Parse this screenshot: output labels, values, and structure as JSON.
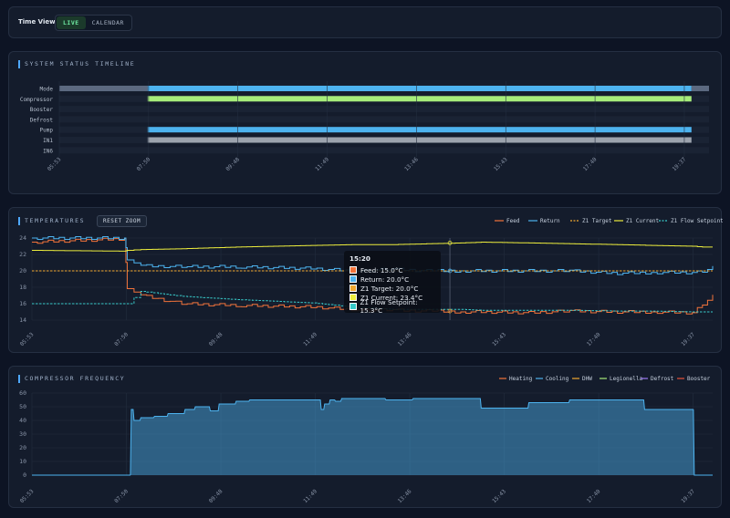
{
  "time_view": {
    "label": "Time View:",
    "live_label": "LIVE",
    "calendar_label": "CALENDAR",
    "selected": "LIVE"
  },
  "time_labels": [
    "05:53",
    "07:50",
    "09:48",
    "11:49",
    "13:46",
    "15:43",
    "17:40",
    "19:37"
  ],
  "status": {
    "title": "SYSTEM STATUS TIMELINE",
    "rows": [
      {
        "label": "Mode",
        "segments": [
          {
            "from": 0,
            "to": 0.136,
            "color": "#5c6980"
          },
          {
            "from": 0.136,
            "to": 0.973,
            "color": "#4db3ef"
          },
          {
            "from": 0.973,
            "to": 1.0,
            "color": "#5c6980"
          }
        ]
      },
      {
        "label": "Compressor",
        "segments": [
          {
            "from": 0.136,
            "to": 0.973,
            "color": "#a6ec7a"
          }
        ]
      },
      {
        "label": "Booster",
        "segments": []
      },
      {
        "label": "Defrost",
        "segments": []
      },
      {
        "label": "Pump",
        "segments": [
          {
            "from": 0.136,
            "to": 0.973,
            "color": "#4db3ef"
          }
        ]
      },
      {
        "label": "IN1",
        "segments": [
          {
            "from": 0.136,
            "to": 0.973,
            "color": "#9ca3ad"
          }
        ]
      },
      {
        "label": "IN6",
        "segments": []
      }
    ]
  },
  "temperatures": {
    "title": "TEMPERATURES",
    "reset_label": "RESET ZOOM",
    "ylim": [
      14,
      24
    ],
    "yticks": [
      14,
      16,
      18,
      20,
      22,
      24
    ],
    "series": [
      {
        "name": "Feed",
        "color": "#f2733a",
        "dash": false
      },
      {
        "name": "Return",
        "color": "#4db3ef",
        "dash": false
      },
      {
        "name": "Z1 Target",
        "color": "#f0a830",
        "dash": true
      },
      {
        "name": "Z1 Current",
        "color": "#ecec3c",
        "dash": false
      },
      {
        "name": "Z1 Flow Setpoint",
        "color": "#38c9c9",
        "dash": true
      }
    ],
    "tooltip": {
      "time": "15:20",
      "rows": [
        {
          "label": "Feed: 15.0°C",
          "color": "#f2733a"
        },
        {
          "label": "Return: 20.0°C",
          "color": "#4db3ef"
        },
        {
          "label": "Z1 Target: 20.0°C",
          "color": "#f0a830"
        },
        {
          "label": "Z1 Current: 23.4°C",
          "color": "#ecec3c"
        },
        {
          "label": "Z1 Flow Setpoint: 15.3°C",
          "color": "#38c9c9"
        }
      ]
    }
  },
  "compressor": {
    "title": "COMPRESSOR FREQUENCY",
    "ylim": [
      0,
      60
    ],
    "yticks": [
      0,
      10,
      20,
      30,
      40,
      50,
      60
    ],
    "legend": [
      {
        "name": "Heating",
        "color": "#f2733a"
      },
      {
        "name": "Cooling",
        "color": "#4db3ef"
      },
      {
        "name": "DHW",
        "color": "#f0a830"
      },
      {
        "name": "Legionella",
        "color": "#a6ec7a"
      },
      {
        "name": "Defrost",
        "color": "#9d7bf5"
      },
      {
        "name": "Booster",
        "color": "#e8523a"
      }
    ]
  },
  "chart_data": [
    {
      "type": "line",
      "title": "TEMPERATURES",
      "x": [
        "05:53",
        "07:50",
        "07:52",
        "08:10",
        "09:00",
        "10:00",
        "11:49",
        "12:30",
        "13:46",
        "14:30",
        "15:20",
        "15:43",
        "16:30",
        "17:40",
        "18:30",
        "19:37",
        "20:30",
        "20:45",
        "20:55"
      ],
      "ylim": [
        14,
        24
      ],
      "series": [
        {
          "name": "Feed",
          "values": [
            23.5,
            23.9,
            18.0,
            17.0,
            16.0,
            15.8,
            15.6,
            15.3,
            15.2,
            15.1,
            15.0,
            15.0,
            14.9,
            15.1,
            15.0,
            15.0,
            14.9,
            16.0,
            17.0
          ]
        },
        {
          "name": "Return",
          "values": [
            24.0,
            24.0,
            21.5,
            20.6,
            20.5,
            20.5,
            20.3,
            20.0,
            20.2,
            20.0,
            20.0,
            20.0,
            20.0,
            20.0,
            19.7,
            19.8,
            19.8,
            20.0,
            20.5
          ]
        },
        {
          "name": "Z1 Target",
          "values": [
            20,
            20,
            20,
            20,
            20,
            20,
            20,
            20,
            20,
            20,
            20,
            20,
            20,
            20,
            20,
            20,
            20,
            20,
            20
          ]
        },
        {
          "name": "Z1 Current",
          "values": [
            22.5,
            22.4,
            22.5,
            22.6,
            22.7,
            22.9,
            23.1,
            23.2,
            23.2,
            23.3,
            23.4,
            23.5,
            23.4,
            23.3,
            23.2,
            23.1,
            23.0,
            22.9,
            22.9
          ]
        },
        {
          "name": "Z1 Flow Setpoint",
          "values": [
            16.0,
            16.0,
            16.0,
            17.5,
            16.9,
            16.5,
            16.1,
            15.6,
            15.3,
            15.3,
            15.3,
            15.2,
            15.2,
            15.2,
            15.1,
            15.1,
            15.0,
            15.0,
            15.0
          ]
        }
      ]
    },
    {
      "type": "area",
      "title": "COMPRESSOR FREQUENCY",
      "ylim": [
        0,
        60
      ],
      "series": [
        {
          "name": "Cooling",
          "points": [
            [
              0.0,
              0
            ],
            [
              0.145,
              0
            ],
            [
              0.146,
              48
            ],
            [
              0.15,
              40
            ],
            [
              0.16,
              42
            ],
            [
              0.18,
              43
            ],
            [
              0.2,
              45
            ],
            [
              0.225,
              48
            ],
            [
              0.24,
              50
            ],
            [
              0.262,
              47
            ],
            [
              0.275,
              52
            ],
            [
              0.3,
              54
            ],
            [
              0.32,
              55
            ],
            [
              0.34,
              55
            ],
            [
              0.4,
              55
            ],
            [
              0.425,
              48
            ],
            [
              0.43,
              52
            ],
            [
              0.438,
              55
            ],
            [
              0.446,
              54
            ],
            [
              0.455,
              56
            ],
            [
              0.5,
              56
            ],
            [
              0.52,
              55
            ],
            [
              0.54,
              55
            ],
            [
              0.56,
              56
            ],
            [
              0.6,
              56
            ],
            [
              0.64,
              56
            ],
            [
              0.66,
              49
            ],
            [
              0.7,
              49
            ],
            [
              0.73,
              53
            ],
            [
              0.76,
              53
            ],
            [
              0.79,
              55
            ],
            [
              0.84,
              55
            ],
            [
              0.87,
              55
            ],
            [
              0.9,
              48
            ],
            [
              0.94,
              48
            ],
            [
              0.972,
              48
            ],
            [
              0.973,
              0
            ],
            [
              1.0,
              0
            ]
          ]
        }
      ]
    }
  ]
}
